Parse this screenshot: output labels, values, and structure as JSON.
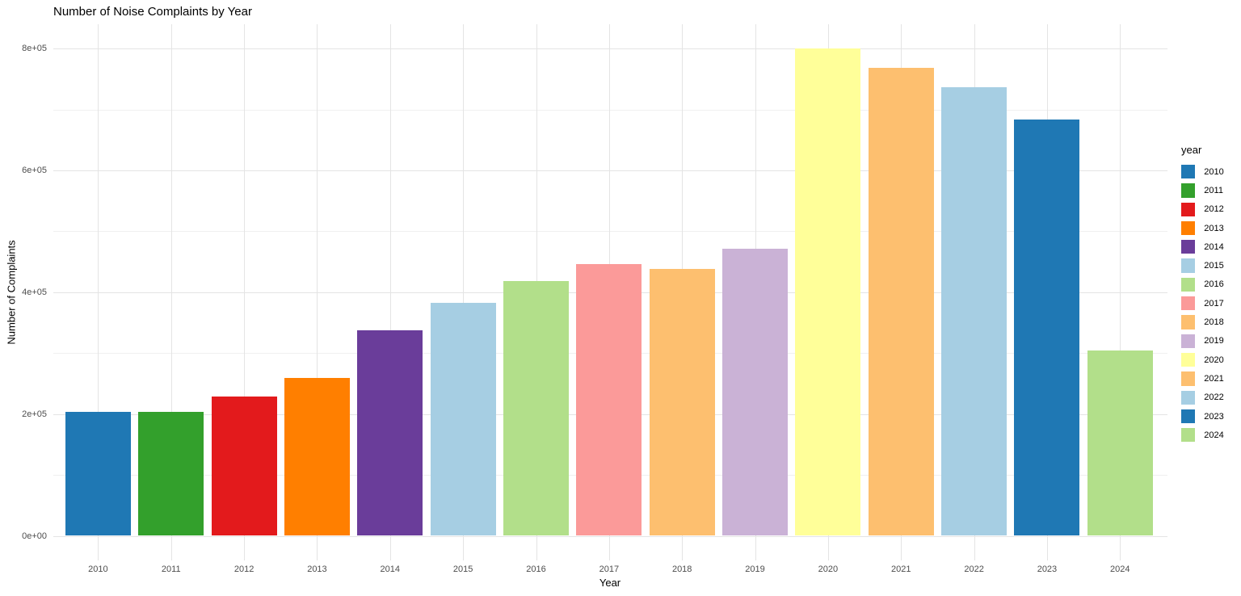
{
  "chart_data": {
    "type": "bar",
    "title": "Number of Noise Complaints by Year",
    "xlabel": "Year",
    "ylabel": "Number of Complaints",
    "categories": [
      "2010",
      "2011",
      "2012",
      "2013",
      "2014",
      "2015",
      "2016",
      "2017",
      "2018",
      "2019",
      "2020",
      "2021",
      "2022",
      "2023",
      "2024"
    ],
    "values": [
      203000,
      204000,
      229000,
      259000,
      338000,
      383000,
      418000,
      446000,
      438000,
      472000,
      800000,
      768000,
      737000,
      683000,
      304000
    ],
    "bar_colors": [
      "#1f78b4",
      "#33a02c",
      "#e31a1c",
      "#ff7f00",
      "#6a3d9a",
      "#a6cee3",
      "#b2df8a",
      "#fb9a99",
      "#fdbf6f",
      "#cab2d6",
      "#ffff99",
      "#fdbf6f",
      "#a6cee3",
      "#1f78b4",
      "#b2df8a"
    ],
    "ylim": [
      0,
      800000
    ],
    "ytick_values": [
      0,
      200000,
      400000,
      600000,
      800000
    ],
    "ytick_labels": [
      "0e+00",
      "2e+05",
      "4e+05",
      "6e+05",
      "8e+05"
    ],
    "ytick_minor_values": [
      100000,
      300000,
      500000,
      700000
    ],
    "grid": true,
    "legend": {
      "title": "year",
      "position": "right",
      "entries": [
        {
          "label": "2010",
          "color": "#1f78b4"
        },
        {
          "label": "2011",
          "color": "#33a02c"
        },
        {
          "label": "2012",
          "color": "#e31a1c"
        },
        {
          "label": "2013",
          "color": "#ff7f00"
        },
        {
          "label": "2014",
          "color": "#6a3d9a"
        },
        {
          "label": "2015",
          "color": "#a6cee3"
        },
        {
          "label": "2016",
          "color": "#b2df8a"
        },
        {
          "label": "2017",
          "color": "#fb9a99"
        },
        {
          "label": "2018",
          "color": "#fdbf6f"
        },
        {
          "label": "2019",
          "color": "#cab2d6"
        },
        {
          "label": "2020",
          "color": "#ffff99"
        },
        {
          "label": "2021",
          "color": "#fdbf6f"
        },
        {
          "label": "2022",
          "color": "#a6cee3"
        },
        {
          "label": "2023",
          "color": "#1f78b4"
        },
        {
          "label": "2024",
          "color": "#b2df8a"
        }
      ]
    }
  },
  "colors": {
    "background": "#ffffff",
    "grid_major": "#e4e4e4",
    "grid_minor": "#f0f0f0",
    "tick_text": "#4d4d4d",
    "title_text": "#000000"
  }
}
